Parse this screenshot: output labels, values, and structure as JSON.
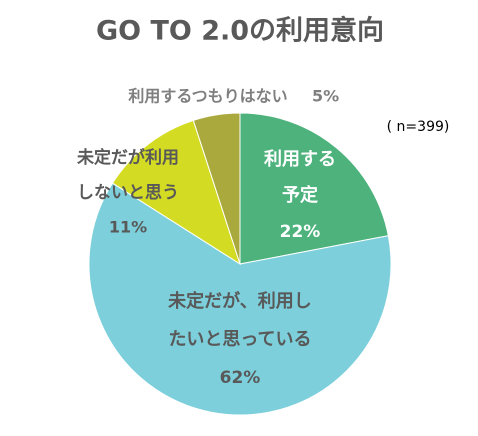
{
  "chart_data": {
    "type": "pie",
    "title": "GO TO 2.0の利用意向",
    "subtitle": "( n=399)",
    "categories": [
      [
        "利用する",
        "予定"
      ],
      [
        "未定だが、利用し",
        "たいと思っている"
      ],
      [
        "未定だが利用",
        "しないと思う"
      ],
      [
        "利用するつもりはない"
      ]
    ],
    "values": [
      22,
      62,
      11,
      5
    ],
    "value_labels": [
      "22%",
      "62%",
      "11%",
      "5%"
    ],
    "colors": [
      "#4db27c",
      "#7ccfdb",
      "#d3dc22",
      "#aaa93d"
    ]
  }
}
